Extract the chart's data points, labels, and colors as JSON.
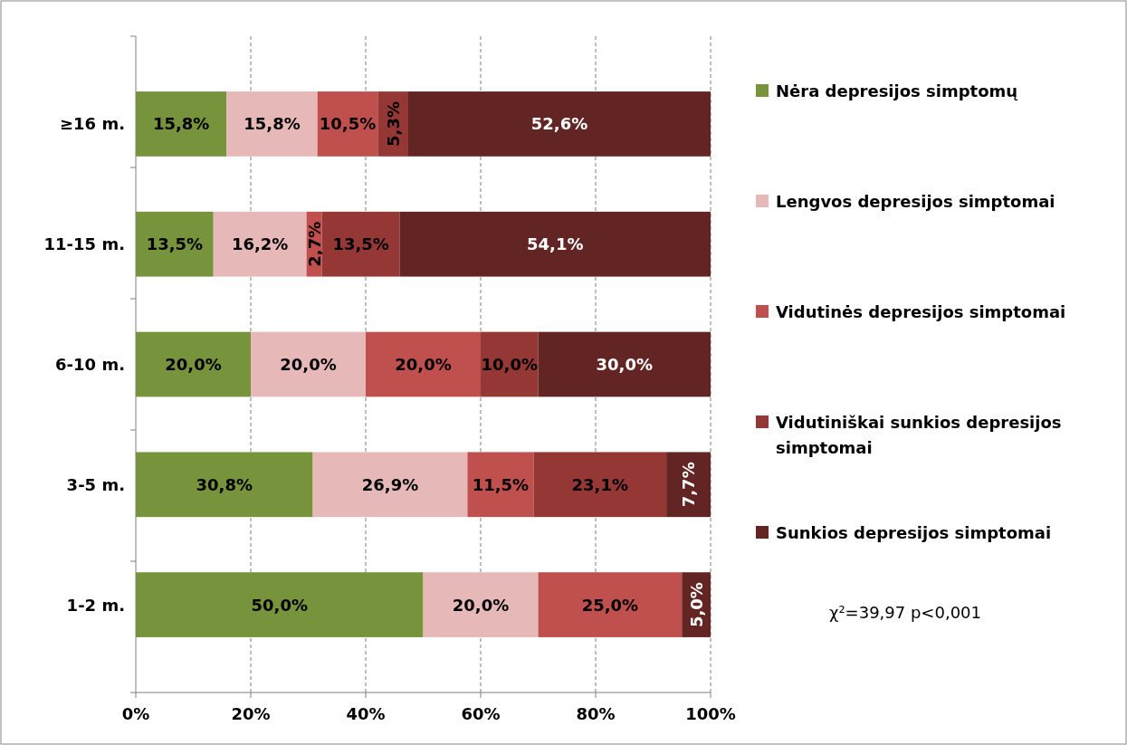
{
  "chart_data": {
    "type": "bar",
    "orientation": "horizontal",
    "stacked": true,
    "categories": [
      "≥16 m.",
      "11-15 m.",
      "6-10 m.",
      "3-5 m.",
      "1-2 m."
    ],
    "series": [
      {
        "name": "Nėra depresijos simptomų",
        "color": "#77933c",
        "values": [
          15.8,
          13.5,
          20.0,
          30.8,
          50.0
        ],
        "value_labels": [
          "15,8%",
          "13,5%",
          "20,0%",
          "30,8%",
          "50,0%"
        ]
      },
      {
        "name": "Lengvos depresijos simptomai",
        "color": "#e6b9b8",
        "values": [
          15.8,
          16.2,
          20.0,
          26.9,
          20.0
        ],
        "value_labels": [
          "15,8%",
          "16,2%",
          "20,0%",
          "26,9%",
          "20,0%"
        ]
      },
      {
        "name": "Vidutinės depresijos simptomai",
        "color": "#c0504d",
        "values": [
          10.5,
          2.7,
          20.0,
          11.5,
          25.0
        ],
        "value_labels": [
          "10,5%",
          "2,7%",
          "20,0%",
          "11,5%",
          "25,0%"
        ]
      },
      {
        "name": "Vidutiniškai sunkios depresijos simptomai",
        "color": "#953735",
        "values": [
          5.3,
          13.5,
          10.0,
          23.1,
          null
        ],
        "value_labels": [
          "5,3%",
          "13,5%",
          "10,0%",
          "23,1%",
          null
        ]
      },
      {
        "name": "Sunkios depresijos simptomai",
        "color": "#632523",
        "values": [
          52.6,
          54.1,
          30.0,
          7.7,
          5.0
        ],
        "value_labels": [
          "52,6%",
          "54,1%",
          "30,0%",
          "7,7%",
          "5,0%"
        ]
      }
    ],
    "xlim": [
      0,
      100
    ],
    "xticks": [
      {
        "value": 0,
        "label": "0%"
      },
      {
        "value": 20,
        "label": "20%"
      },
      {
        "value": 40,
        "label": "40%"
      },
      {
        "value": 60,
        "label": "60%"
      },
      {
        "value": 80,
        "label": "80%"
      },
      {
        "value": 100,
        "label": "100%"
      }
    ],
    "grid": "x",
    "legend": "right",
    "annotations": [
      "χ²=39,97 p<0,001"
    ]
  }
}
